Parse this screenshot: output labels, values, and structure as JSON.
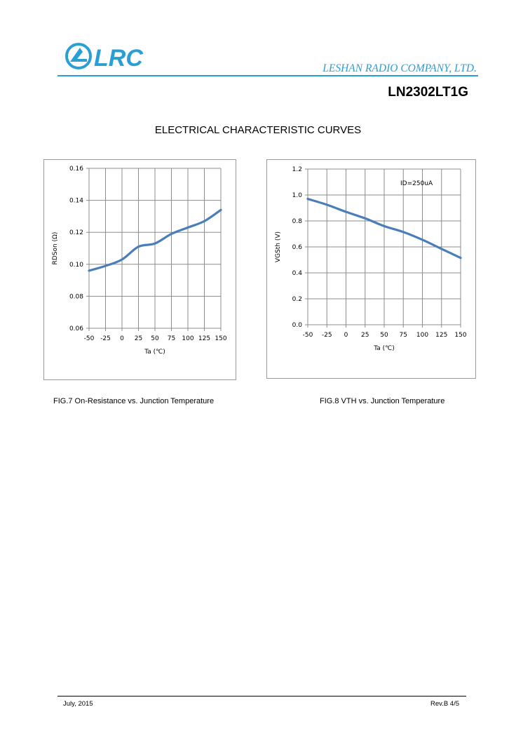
{
  "header": {
    "logo_text": "LRC",
    "company": "LESHAN RADIO COMPANY, LTD.",
    "part_number": "LN2302LT1G",
    "brand_color": "#2a9fd6"
  },
  "section_title": "ELECTRICAL CHARACTERISTIC CURVES",
  "chart_data": [
    {
      "type": "line",
      "title": "",
      "xlabel": "Ta (℃)",
      "ylabel": "RDSon (Ω)",
      "x": [
        -50,
        -25,
        0,
        25,
        50,
        75,
        100,
        125,
        150
      ],
      "xticks": [
        "-50",
        "-25",
        "0",
        "25",
        "50",
        "75",
        "100",
        "125",
        "150"
      ],
      "yticks": [
        "0.06",
        "0.08",
        "0.10",
        "0.12",
        "0.14",
        "0.16"
      ],
      "xlim": [
        -50,
        150
      ],
      "ylim": [
        0.06,
        0.16
      ],
      "grid": true,
      "series": [
        {
          "name": "RDSon",
          "color": "#4a7ebb",
          "values": [
            0.096,
            0.099,
            0.103,
            0.111,
            0.113,
            0.119,
            0.123,
            0.127,
            0.134
          ]
        }
      ],
      "annotation": "",
      "caption": "FIG.7 On-Resistance vs. Junction Temperature"
    },
    {
      "type": "line",
      "title": "",
      "xlabel": "Ta (℃)",
      "ylabel": "VGSth (V)",
      "x": [
        -50,
        -25,
        0,
        25,
        50,
        75,
        100,
        125,
        150
      ],
      "xticks": [
        "-50",
        "-25",
        "0",
        "25",
        "50",
        "75",
        "100",
        "125",
        "150"
      ],
      "yticks": [
        "0.0",
        "0.2",
        "0.4",
        "0.6",
        "0.8",
        "1.0",
        "1.2"
      ],
      "xlim": [
        -50,
        150
      ],
      "ylim": [
        0,
        1.2
      ],
      "grid": true,
      "series": [
        {
          "name": "VGSth",
          "color": "#4a7ebb",
          "values": [
            0.97,
            0.925,
            0.87,
            0.82,
            0.76,
            0.715,
            0.655,
            0.585,
            0.515
          ]
        }
      ],
      "annotation": "ID=250uA",
      "caption": "FIG.8 VTH vs. Junction Temperature"
    }
  ],
  "footer": {
    "date": "July, 2015",
    "revision": "Rev.B  4/5"
  }
}
